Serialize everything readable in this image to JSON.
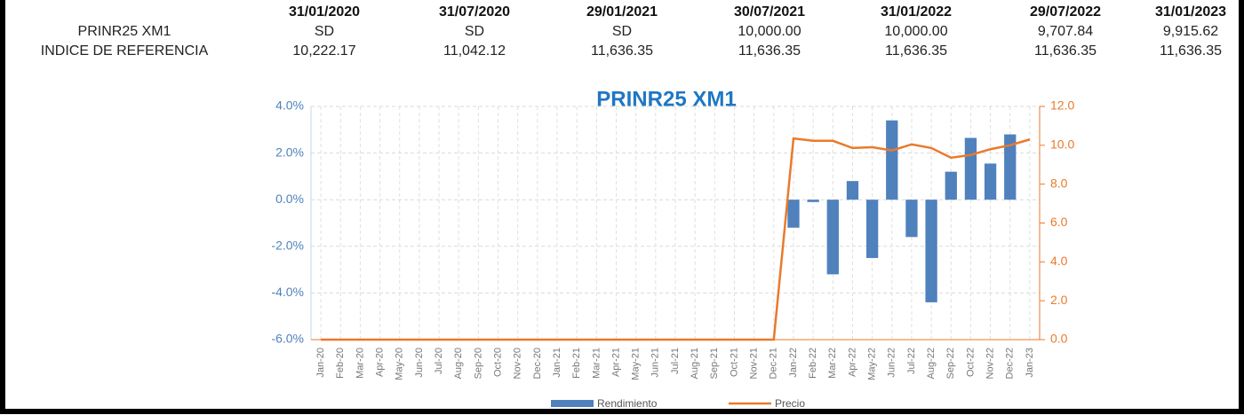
{
  "table": {
    "header": [
      "31/01/2020",
      "31/07/2020",
      "29/01/2021",
      "30/07/2021",
      "31/01/2022",
      "29/07/2022",
      "31/01/2023"
    ],
    "rows": [
      {
        "label": "PRINR25 XM1",
        "cells": [
          "SD",
          "SD",
          "SD",
          "10,000.00",
          "10,000.00",
          "9,707.84",
          "9,915.62"
        ]
      },
      {
        "label": "INDICE DE REFERENCIA",
        "cells": [
          "10,222.17",
          "11,042.12",
          "11,636.35",
          "11,636.35",
          "11,636.35",
          "11,636.35",
          "11,636.35"
        ]
      }
    ]
  },
  "chart_data": {
    "type": "bar-line",
    "title": "PRINR25 XM1",
    "categories": [
      "Jan-20",
      "Feb-20",
      "Mar-20",
      "Apr-20",
      "May-20",
      "Jun-20",
      "Jul-20",
      "Aug-20",
      "Sep-20",
      "Oct-20",
      "Nov-20",
      "Dec-20",
      "Jan-21",
      "Feb-21",
      "Mar-21",
      "Apr-21",
      "May-21",
      "Jun-21",
      "Jul-21",
      "Aug-21",
      "Sep-21",
      "Oct-21",
      "Nov-21",
      "Dec-21",
      "Jan-22",
      "Feb-22",
      "Mar-22",
      "Apr-22",
      "May-22",
      "Jun-22",
      "Jul-22",
      "Aug-22",
      "Sep-22",
      "Oct-22",
      "Nov-22",
      "Dec-22",
      "Jan-23"
    ],
    "series": [
      {
        "name": "Rendimiento",
        "type": "bar",
        "color": "#4f81bd",
        "axis": "y",
        "values": [
          null,
          null,
          null,
          null,
          null,
          null,
          null,
          null,
          null,
          null,
          null,
          null,
          null,
          null,
          null,
          null,
          null,
          null,
          null,
          null,
          null,
          null,
          null,
          null,
          -1.2,
          -0.1,
          -3.2,
          0.8,
          -2.5,
          3.4,
          -1.6,
          -4.4,
          1.2,
          2.65,
          1.55,
          2.8,
          null
        ]
      },
      {
        "name": "Precio",
        "type": "line",
        "color": "#e97a2b",
        "axis": "y2",
        "values": [
          0,
          0,
          0,
          0,
          0,
          0,
          0,
          0,
          0,
          0,
          0,
          0,
          0,
          0,
          0,
          0,
          0,
          0,
          0,
          0,
          0,
          0,
          0,
          0,
          10.35,
          10.23,
          10.23,
          9.86,
          9.9,
          9.73,
          10.05,
          9.86,
          9.36,
          9.5,
          9.8,
          10.0,
          10.3
        ]
      }
    ],
    "ylim": [
      -6,
      4
    ],
    "yticks": [
      {
        "value": -6,
        "label": "-6.0%"
      },
      {
        "value": -4,
        "label": "-4.0%"
      },
      {
        "value": -2,
        "label": "-2.0%"
      },
      {
        "value": 0,
        "label": "0.0%"
      },
      {
        "value": 2,
        "label": "2.0%"
      },
      {
        "value": 4,
        "label": "4.0%"
      }
    ],
    "y2lim": [
      0,
      12
    ],
    "y2ticks": [
      {
        "value": 0,
        "label": "0.0"
      },
      {
        "value": 2,
        "label": "2.0"
      },
      {
        "value": 4,
        "label": "4.0"
      },
      {
        "value": 6,
        "label": "6.0"
      },
      {
        "value": 8,
        "label": "8.0"
      },
      {
        "value": 10,
        "label": "10.0"
      },
      {
        "value": 12,
        "label": "12.0"
      }
    ],
    "grid": true,
    "legend": "bottom"
  }
}
